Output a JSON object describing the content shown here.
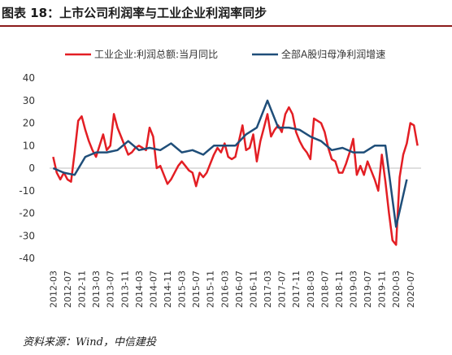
{
  "header": {
    "title": "图表 18：上市公司利润率与工业企业利润率同步",
    "source": "资料来源：Wind，中信建投"
  },
  "chart_data": {
    "type": "line",
    "ylim": [
      -40,
      40
    ],
    "yticks": [
      -40,
      -30,
      -20,
      -10,
      0,
      10,
      20,
      30,
      40
    ],
    "x_tick_labels": [
      "2012-03",
      "2012-07",
      "2012-11",
      "2013-03",
      "2013-07",
      "2013-11",
      "2014-03",
      "2014-07",
      "2014-11",
      "2015-03",
      "2015-07",
      "2015-11",
      "2016-03",
      "2016-07",
      "2016-11",
      "2017-03",
      "2017-07",
      "2017-11",
      "2018-03",
      "2018-07",
      "2018-11",
      "2019-03",
      "2019-07",
      "2019-11",
      "2020-03",
      "2020-07"
    ],
    "grid": false,
    "legend_position": "top",
    "series": [
      {
        "name": "工业企业:利润总额:当月同比",
        "color": "#e31e24",
        "points": [
          [
            "2012-03",
            5
          ],
          [
            "2012-04",
            -2
          ],
          [
            "2012-05",
            -5
          ],
          [
            "2012-06",
            -2
          ],
          [
            "2012-07",
            -5
          ],
          [
            "2012-08",
            -6
          ],
          [
            "2012-09",
            7
          ],
          [
            "2012-10",
            21
          ],
          [
            "2012-11",
            23
          ],
          [
            "2012-12",
            17
          ],
          [
            "2013-01",
            12
          ],
          [
            "2013-02",
            8
          ],
          [
            "2013-03",
            5
          ],
          [
            "2013-04",
            10
          ],
          [
            "2013-05",
            15
          ],
          [
            "2013-06",
            8
          ],
          [
            "2013-07",
            10
          ],
          [
            "2013-08",
            24
          ],
          [
            "2013-09",
            18
          ],
          [
            "2013-10",
            14
          ],
          [
            "2013-11",
            10
          ],
          [
            "2013-12",
            6
          ],
          [
            "2014-01",
            7
          ],
          [
            "2014-02",
            9
          ],
          [
            "2014-03",
            10
          ],
          [
            "2014-04",
            9
          ],
          [
            "2014-05",
            8
          ],
          [
            "2014-06",
            18
          ],
          [
            "2014-07",
            14
          ],
          [
            "2014-08",
            0
          ],
          [
            "2014-09",
            1
          ],
          [
            "2014-10",
            -3
          ],
          [
            "2014-11",
            -7
          ],
          [
            "2014-12",
            -5
          ],
          [
            "2015-01",
            -2
          ],
          [
            "2015-02",
            1
          ],
          [
            "2015-03",
            3
          ],
          [
            "2015-04",
            1
          ],
          [
            "2015-05",
            -1
          ],
          [
            "2015-06",
            -2
          ],
          [
            "2015-07",
            -8
          ],
          [
            "2015-08",
            -2
          ],
          [
            "2015-09",
            -4
          ],
          [
            "2015-10",
            -2
          ],
          [
            "2015-11",
            2
          ],
          [
            "2015-12",
            6
          ],
          [
            "2016-01",
            9
          ],
          [
            "2016-02",
            7
          ],
          [
            "2016-03",
            11
          ],
          [
            "2016-04",
            5
          ],
          [
            "2016-05",
            4
          ],
          [
            "2016-06",
            5
          ],
          [
            "2016-07",
            12
          ],
          [
            "2016-08",
            19
          ],
          [
            "2016-09",
            8
          ],
          [
            "2016-10",
            9
          ],
          [
            "2016-11",
            15
          ],
          [
            "2016-12",
            3
          ],
          [
            "2017-01",
            12
          ],
          [
            "2017-02",
            18
          ],
          [
            "2017-03",
            24
          ],
          [
            "2017-04",
            14
          ],
          [
            "2017-05",
            17
          ],
          [
            "2017-06",
            19
          ],
          [
            "2017-07",
            16
          ],
          [
            "2017-08",
            24
          ],
          [
            "2017-09",
            27
          ],
          [
            "2017-10",
            24
          ],
          [
            "2017-11",
            16
          ],
          [
            "2017-12",
            12
          ],
          [
            "2018-01",
            9
          ],
          [
            "2018-02",
            7
          ],
          [
            "2018-03",
            4
          ],
          [
            "2018-04",
            22
          ],
          [
            "2018-05",
            21
          ],
          [
            "2018-06",
            20
          ],
          [
            "2018-07",
            16
          ],
          [
            "2018-08",
            9
          ],
          [
            "2018-09",
            4
          ],
          [
            "2018-10",
            3
          ],
          [
            "2018-11",
            -2
          ],
          [
            "2018-12",
            -2
          ],
          [
            "2019-01",
            2
          ],
          [
            "2019-02",
            7
          ],
          [
            "2019-03",
            13
          ],
          [
            "2019-04",
            -3
          ],
          [
            "2019-05",
            1
          ],
          [
            "2019-06",
            -3
          ],
          [
            "2019-07",
            3
          ],
          [
            "2019-08",
            -1
          ],
          [
            "2019-09",
            -5
          ],
          [
            "2019-10",
            -10
          ],
          [
            "2019-11",
            6
          ],
          [
            "2019-12",
            -6
          ],
          [
            "2020-01",
            -20
          ],
          [
            "2020-02",
            -32
          ],
          [
            "2020-03",
            -34
          ],
          [
            "2020-04",
            -4
          ],
          [
            "2020-05",
            6
          ],
          [
            "2020-06",
            11
          ],
          [
            "2020-07",
            20
          ],
          [
            "2020-08",
            19
          ],
          [
            "2020-09",
            10
          ]
        ]
      },
      {
        "name": "全部A股归母净利润增速",
        "color": "#1f4e79",
        "points": [
          [
            "2012-03",
            0
          ],
          [
            "2012-06",
            -2
          ],
          [
            "2012-09",
            -3
          ],
          [
            "2012-12",
            5
          ],
          [
            "2013-03",
            7
          ],
          [
            "2013-06",
            7
          ],
          [
            "2013-09",
            8
          ],
          [
            "2013-12",
            12
          ],
          [
            "2014-03",
            8
          ],
          [
            "2014-06",
            9
          ],
          [
            "2014-09",
            8
          ],
          [
            "2014-12",
            11
          ],
          [
            "2015-03",
            7
          ],
          [
            "2015-06",
            8
          ],
          [
            "2015-09",
            6
          ],
          [
            "2015-12",
            10
          ],
          [
            "2016-03",
            10
          ],
          [
            "2016-06",
            10
          ],
          [
            "2016-09",
            15
          ],
          [
            "2016-12",
            18
          ],
          [
            "2017-03",
            30
          ],
          [
            "2017-06",
            18
          ],
          [
            "2017-09",
            18
          ],
          [
            "2017-12",
            17
          ],
          [
            "2018-03",
            14
          ],
          [
            "2018-06",
            12
          ],
          [
            "2018-09",
            8
          ],
          [
            "2018-12",
            9
          ],
          [
            "2019-03",
            7
          ],
          [
            "2019-06",
            7
          ],
          [
            "2019-09",
            10
          ],
          [
            "2019-12",
            10
          ],
          [
            "2020-03",
            -26
          ],
          [
            "2020-06",
            -5
          ]
        ]
      }
    ]
  }
}
